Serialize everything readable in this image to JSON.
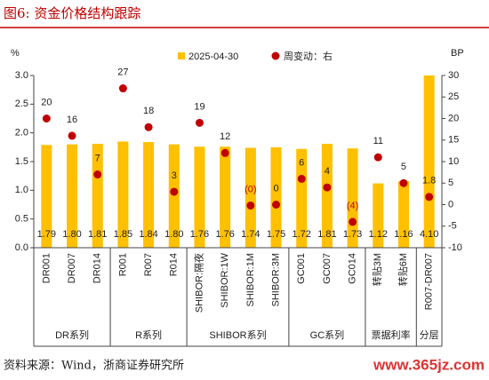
{
  "chart_data": {
    "type": "bar-dot",
    "title": "图6:  资金价格结构跟踪",
    "source": "资料来源：Wind，浙商证券研究所",
    "watermark": "www.365jz.com",
    "y_label": "%",
    "y2_label": "BP",
    "categories": [
      "DR001",
      "DR007",
      "DR014",
      "R001",
      "R007",
      "R014",
      "SHIBOR:隔夜",
      "SHIBOR:1W",
      "SHIBOR:1M",
      "SHIBOR:3M",
      "GC001",
      "GC007",
      "GC014",
      "转贴3M",
      "转贴6M",
      "R007-DR007"
    ],
    "groups": [
      {
        "name": "DR系列",
        "members": [
          "DR001",
          "DR007",
          "DR014"
        ]
      },
      {
        "name": "R系列",
        "members": [
          "R001",
          "R007",
          "R014"
        ]
      },
      {
        "name": "SHIBOR系列",
        "members": [
          "SHIBOR:隔夜",
          "SHIBOR:1W",
          "SHIBOR:1M",
          "SHIBOR:3M"
        ]
      },
      {
        "name": "GC系列",
        "members": [
          "GC001",
          "GC007",
          "GC014"
        ]
      },
      {
        "name": "票据利率",
        "members": [
          "转贴3M",
          "转贴6M"
        ]
      },
      {
        "name": "分层",
        "members": [
          "R007-DR007"
        ]
      }
    ],
    "series": [
      {
        "name": "2025-04-30",
        "color": "#ffc000",
        "axis": "y",
        "kind": "bar",
        "values": [
          1.79,
          1.8,
          1.81,
          1.85,
          1.84,
          1.8,
          1.76,
          1.76,
          1.74,
          1.75,
          1.72,
          1.81,
          1.73,
          1.12,
          1.16,
          4.1
        ],
        "value_labels": [
          "1.79",
          "1.80",
          "1.81",
          "1.85",
          "1.84",
          "1.80",
          "1.76",
          "1.76",
          "1.74",
          "1.75",
          "1.72",
          "1.81",
          "1.73",
          "1.12",
          "1.16",
          "4.10"
        ]
      },
      {
        "name": "周变动：右",
        "color": "#c00000",
        "axis": "y2",
        "kind": "dot",
        "values": [
          20,
          16,
          7,
          27,
          18,
          3,
          19,
          12,
          -0.2,
          0,
          6,
          4,
          -4,
          11,
          5,
          1.8
        ],
        "value_labels": [
          "20",
          "16",
          "7",
          "27",
          "18",
          "3",
          "19",
          "12",
          "(0)",
          "0",
          "6",
          "4",
          "(4)",
          "11",
          "5",
          "1.8"
        ]
      }
    ],
    "ylim": [
      0,
      3
    ],
    "yticks": [
      {
        "value": 0,
        "label": "0.0"
      },
      0.5,
      {
        "value": 1,
        "label": "1.0"
      },
      1.5,
      {
        "value": 2,
        "label": "2.0"
      },
      2.5,
      {
        "value": 3,
        "label": "3.0"
      }
    ],
    "y2lim": [
      -10,
      30
    ],
    "y2ticks": [
      -10,
      -5,
      0,
      5,
      10,
      15,
      20,
      25,
      30
    ]
  }
}
